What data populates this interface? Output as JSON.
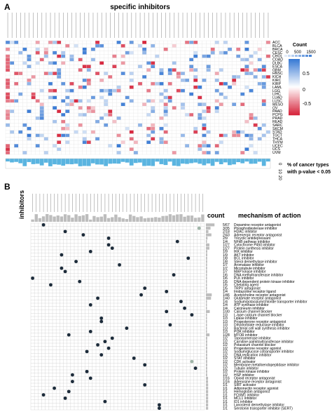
{
  "panel_a": {
    "label": "A",
    "title": "specific inhibitors",
    "legend_title": "Count",
    "legend_ticks": [
      "0",
      "500",
      "1500"
    ],
    "scale_ticks": [
      "0.5",
      "0",
      "-0.5"
    ],
    "pct_label_line1": "% of cancer types",
    "pct_label_line2": "with p-value < 0.05",
    "pct_ticks": [
      "0",
      "10",
      "20"
    ]
  },
  "panel_b": {
    "label": "B",
    "row_axis_label": "inhibitors",
    "count_header": "count",
    "moa_header": "mechanism of action"
  },
  "chart_data": [
    {
      "type": "heatmap",
      "title": "specific inhibitors",
      "rows": [
        "ACC",
        "BLCA",
        "BRCA",
        "CESC",
        "CHOL",
        "COAD",
        "DLBC",
        "ESCA",
        "GBM",
        "HNSC",
        "KICH",
        "KIRC",
        "KIRP",
        "LAML",
        "LGG",
        "LIHC",
        "LUAD",
        "LUSC",
        "MESO",
        "OV",
        "PAAD",
        "PCPG",
        "PRAD",
        "READ",
        "SARC",
        "SKCM",
        "STAD",
        "TGCT",
        "THCA",
        "THYM",
        "UCEC",
        "UCS",
        "UVM"
      ],
      "column_count": 62,
      "value_range": [
        -0.7,
        0.7
      ],
      "colorscale": {
        "low": "#d7263d",
        "mid": "#ffffff",
        "high": "#3a7bd5"
      },
      "marginal_bar": {
        "label": "% of cancer types with p-value < 0.05",
        "range": [
          0,
          20
        ]
      }
    },
    {
      "type": "table",
      "row_axis_label": "inhibitors",
      "column_count": 48,
      "count_header": "count",
      "moa_header": "mechanism of action",
      "mechanisms": [
        {
          "count": "5/67",
          "name": "Dopamine receptor antagonist"
        },
        {
          "count": "3/35",
          "name": "Phosphodiesterase inhibitor"
        },
        {
          "count": "2/18",
          "name": "HDAC inhibitor"
        },
        {
          "count": "2/43",
          "name": "Adrenergic receptor antagonist"
        },
        {
          "count": "2/9",
          "name": "Tricyclic antidepressant"
        },
        {
          "count": "1/4",
          "name": "NFkB pathway inhibitor"
        },
        {
          "count": "1/27",
          "name": "Cytochrome P450 inhibitor"
        },
        {
          "count": "1/27",
          "name": "Protein synthesis inhibitor"
        },
        {
          "count": "1/9",
          "name": "IKK inhibitor"
        },
        {
          "count": "1/9",
          "name": "AKT inhibitor"
        },
        {
          "count": "1/8",
          "name": "BCL inhibitor"
        },
        {
          "count": "1/8",
          "name": "Sterol demethylase inhibitor"
        },
        {
          "count": "1/7",
          "name": "Aromatase inhibitor"
        },
        {
          "count": "1/7",
          "name": "Microtubule inhibitor"
        },
        {
          "count": "1/7",
          "name": "MAP kinase inhibitor"
        },
        {
          "count": "1/6",
          "name": "DNA methyltransferase inhibitor"
        },
        {
          "count": "1/6",
          "name": "PLK inhibitor"
        },
        {
          "count": "1/5",
          "name": "DNA dependent protein kinase inhibitor"
        },
        {
          "count": "1/5",
          "name": "Chelating agent"
        },
        {
          "count": "1/5",
          "name": "TRPV antagonist"
        },
        {
          "count": "1/4",
          "name": "Imidazoline receptor ligand"
        },
        {
          "count": "1/46",
          "name": "Acetylcholine receptor antagonist"
        },
        {
          "count": "1/40",
          "name": "Glutamate receptor antagonist"
        },
        {
          "count": "1/4",
          "name": "Sodium/potassium/chloride transporter inhibitor"
        },
        {
          "count": "1/4",
          "name": "ATP synthase inhibitor"
        },
        {
          "count": "1/4",
          "name": "Calcineurin inhibitor"
        },
        {
          "count": "1/30",
          "name": "Calcium channel blocker"
        },
        {
          "count": "1/3",
          "name": "L-type calcium channel blocker"
        },
        {
          "count": "1/3",
          "name": "Lipase inhibitor"
        },
        {
          "count": "1/3",
          "name": "Progesterone receptor antagonist"
        },
        {
          "count": "1/3",
          "name": "Dihydrofolate reductase inhibitor"
        },
        {
          "count": "1/3",
          "name": "Bacterial cell wall synthesis inhibitor"
        },
        {
          "count": "1/3",
          "name": "PI3K inhibitor"
        },
        {
          "count": "1/28",
          "name": "MTOR inhibitor"
        },
        {
          "count": "1/2",
          "name": "Topoisomerase inhibitor"
        },
        {
          "count": "1/2",
          "name": "Carnitine palmitoyltransferase inhibitor"
        },
        {
          "count": "1/2",
          "name": "Potassium channel blocker"
        },
        {
          "count": "1/2",
          "name": "Progesterone receptor agonist"
        },
        {
          "count": "1/2",
          "name": "Sodium/glucose cotransporter inhibitor"
        },
        {
          "count": "1/2",
          "name": "DNA replication inhibitor"
        },
        {
          "count": "1/2",
          "name": "STAT inhibitor"
        },
        {
          "count": "1/2",
          "name": "CDK activator"
        },
        {
          "count": "1/2",
          "name": "Membrane metalloendopeptidase inhibitor"
        },
        {
          "count": "1/2",
          "name": "Tubulin inhibitor"
        },
        {
          "count": "1/2",
          "name": "Protein kinase inhibitor"
        },
        {
          "count": "1/2",
          "name": "HSP inhibitor"
        },
        {
          "count": "1/16",
          "name": "Opioid receptor antagonist"
        },
        {
          "count": "1/16",
          "name": "Adenosine receptor antagonist"
        },
        {
          "count": "1/1",
          "name": "SIRT activator"
        },
        {
          "count": "1/1",
          "name": "Adiponectin receptor agonist"
        },
        {
          "count": "1/1",
          "name": "Hemoglobin antagonist"
        },
        {
          "count": "1/1",
          "name": "FOXM1 inhibitor"
        },
        {
          "count": "1/1",
          "name": "MCL1 inhibitor"
        },
        {
          "count": "1/1",
          "name": "ID1 inhibitor"
        },
        {
          "count": "1/1",
          "name": "Lanosterol demethylase inhibitor"
        },
        {
          "count": "1/1",
          "name": "Serotonin transporter inhibitor (SERT)"
        }
      ]
    }
  ],
  "colors": {
    "positive": "#3a7bd5",
    "negative": "#d7263d",
    "marginal_bar": "#5ab4e0",
    "dot": "#1c2b3a",
    "dot_light": "#9fb5a8",
    "count_bar": "#bdbdbd",
    "grid": "#cfcfcf"
  }
}
